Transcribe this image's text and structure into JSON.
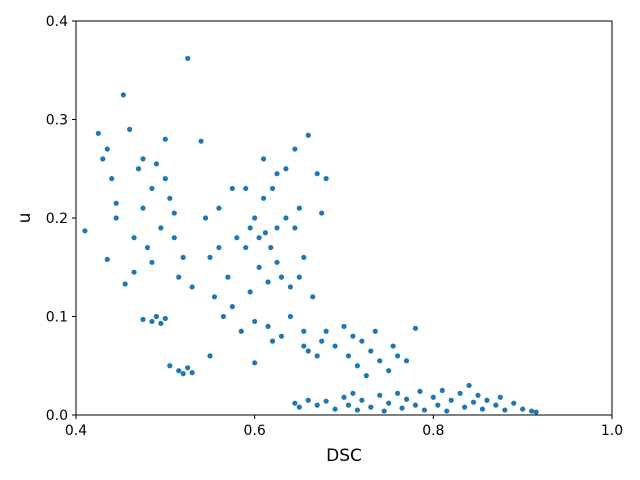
{
  "chart_data": {
    "type": "scatter",
    "xlabel": "DSC",
    "ylabel": "u",
    "color": "#1f77b4",
    "x": [
      0.41,
      0.425,
      0.43,
      0.435,
      0.44,
      0.445,
      0.453,
      0.455,
      0.46,
      0.465,
      0.47,
      0.475,
      0.48,
      0.485,
      0.49,
      0.495,
      0.5,
      0.505,
      0.51,
      0.515,
      0.52,
      0.525,
      0.53,
      0.435,
      0.445,
      0.465,
      0.475,
      0.485,
      0.5,
      0.51,
      0.475,
      0.485,
      0.49,
      0.495,
      0.5,
      0.505,
      0.515,
      0.52,
      0.525,
      0.53,
      0.54,
      0.545,
      0.55,
      0.555,
      0.56,
      0.565,
      0.57,
      0.575,
      0.58,
      0.585,
      0.59,
      0.595,
      0.6,
      0.605,
      0.61,
      0.615,
      0.62,
      0.625,
      0.63,
      0.635,
      0.64,
      0.645,
      0.65,
      0.655,
      0.66,
      0.665,
      0.67,
      0.675,
      0.68,
      0.6,
      0.605,
      0.61,
      0.612,
      0.618,
      0.62,
      0.625,
      0.63,
      0.635,
      0.64,
      0.55,
      0.56,
      0.575,
      0.59,
      0.6,
      0.615,
      0.625,
      0.645,
      0.65,
      0.655,
      0.595,
      0.655,
      0.66,
      0.67,
      0.675,
      0.68,
      0.69,
      0.7,
      0.705,
      0.71,
      0.715,
      0.72,
      0.725,
      0.73,
      0.735,
      0.74,
      0.75,
      0.755,
      0.76,
      0.77,
      0.78,
      0.645,
      0.65,
      0.66,
      0.67,
      0.68,
      0.69,
      0.7,
      0.705,
      0.71,
      0.715,
      0.72,
      0.73,
      0.74,
      0.745,
      0.75,
      0.76,
      0.765,
      0.77,
      0.78,
      0.785,
      0.79,
      0.8,
      0.805,
      0.81,
      0.815,
      0.82,
      0.83,
      0.835,
      0.84,
      0.845,
      0.85,
      0.855,
      0.86,
      0.87,
      0.875,
      0.88,
      0.89,
      0.9,
      0.91,
      0.915
    ],
    "y": [
      0.187,
      0.286,
      0.26,
      0.158,
      0.24,
      0.2,
      0.325,
      0.133,
      0.29,
      0.18,
      0.25,
      0.21,
      0.17,
      0.23,
      0.255,
      0.19,
      0.28,
      0.22,
      0.205,
      0.14,
      0.16,
      0.362,
      0.13,
      0.27,
      0.215,
      0.145,
      0.26,
      0.155,
      0.24,
      0.18,
      0.097,
      0.095,
      0.1,
      0.093,
      0.098,
      0.05,
      0.045,
      0.042,
      0.048,
      0.043,
      0.278,
      0.2,
      0.16,
      0.12,
      0.21,
      0.1,
      0.14,
      0.23,
      0.18,
      0.085,
      0.17,
      0.125,
      0.2,
      0.15,
      0.26,
      0.09,
      0.23,
      0.19,
      0.14,
      0.25,
      0.1,
      0.27,
      0.21,
      0.16,
      0.284,
      0.12,
      0.245,
      0.205,
      0.24,
      0.053,
      0.18,
      0.22,
      0.185,
      0.17,
      0.075,
      0.155,
      0.08,
      0.2,
      0.13,
      0.06,
      0.17,
      0.11,
      0.23,
      0.095,
      0.135,
      0.245,
      0.19,
      0.14,
      0.085,
      0.19,
      0.07,
      0.065,
      0.06,
      0.075,
      0.085,
      0.07,
      0.09,
      0.06,
      0.08,
      0.05,
      0.075,
      0.04,
      0.065,
      0.085,
      0.055,
      0.045,
      0.07,
      0.06,
      0.055,
      0.088,
      0.012,
      0.008,
      0.015,
      0.01,
      0.014,
      0.006,
      0.018,
      0.01,
      0.022,
      0.005,
      0.015,
      0.008,
      0.02,
      0.004,
      0.012,
      0.022,
      0.007,
      0.016,
      0.01,
      0.024,
      0.005,
      0.018,
      0.01,
      0.025,
      0.004,
      0.015,
      0.022,
      0.008,
      0.03,
      0.013,
      0.02,
      0.006,
      0.015,
      0.01,
      0.018,
      0.005,
      0.012,
      0.006,
      0.004,
      0.003
    ],
    "xlim": [
      0.4,
      1.0
    ],
    "ylim": [
      0,
      0.4
    ],
    "xticks": [
      0.4,
      0.6,
      0.8,
      {
        "value": 1,
        "label": "1.0"
      }
    ],
    "yticks": [
      {
        "value": 0,
        "label": "0.0"
      },
      0.1,
      0.2,
      0.3,
      0.4
    ]
  }
}
